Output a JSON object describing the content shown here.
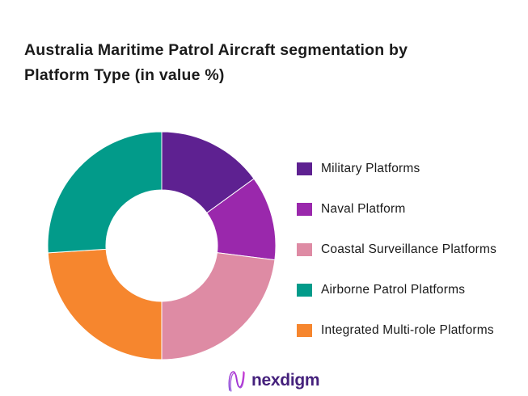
{
  "header": {
    "title_lines": [
      "Australia Maritime Patrol Aircraft segmentation by",
      "Platform Type (in value %)"
    ]
  },
  "chart_data": {
    "type": "pie",
    "subtype": "donut",
    "title": "Australia Maritime Patrol Aircraft segmentation by Platform Type (in value %)",
    "unit": "value %",
    "inner_radius_ratio": 0.49,
    "start_angle_deg": 0,
    "direction": "clockwise",
    "legend_position": "right",
    "segments": [
      {
        "label": "Military Platforms",
        "value": 15,
        "color": "#5E2191"
      },
      {
        "label": "Naval Platform",
        "value": 12,
        "color": "#9A28AC"
      },
      {
        "label": "Coastal Surveillance Platforms",
        "value": 23,
        "color": "#DE8BA4"
      },
      {
        "label": "Airborne Patrol Platforms",
        "value": 26,
        "color": "#029B8A"
      },
      {
        "label": "Integrated Multi-role Platforms",
        "value": 24,
        "color": "#F6862E"
      }
    ],
    "clockwise_draw_order": [
      0,
      1,
      2,
      4,
      3
    ],
    "separator_color": "#ffffff"
  },
  "logo": {
    "brand": "nexdigm",
    "icon": "nexdigm-n-wave-icon",
    "text_color": "#45217C",
    "icon_gradient": [
      "#7A3AD6",
      "#C42BD0"
    ]
  }
}
